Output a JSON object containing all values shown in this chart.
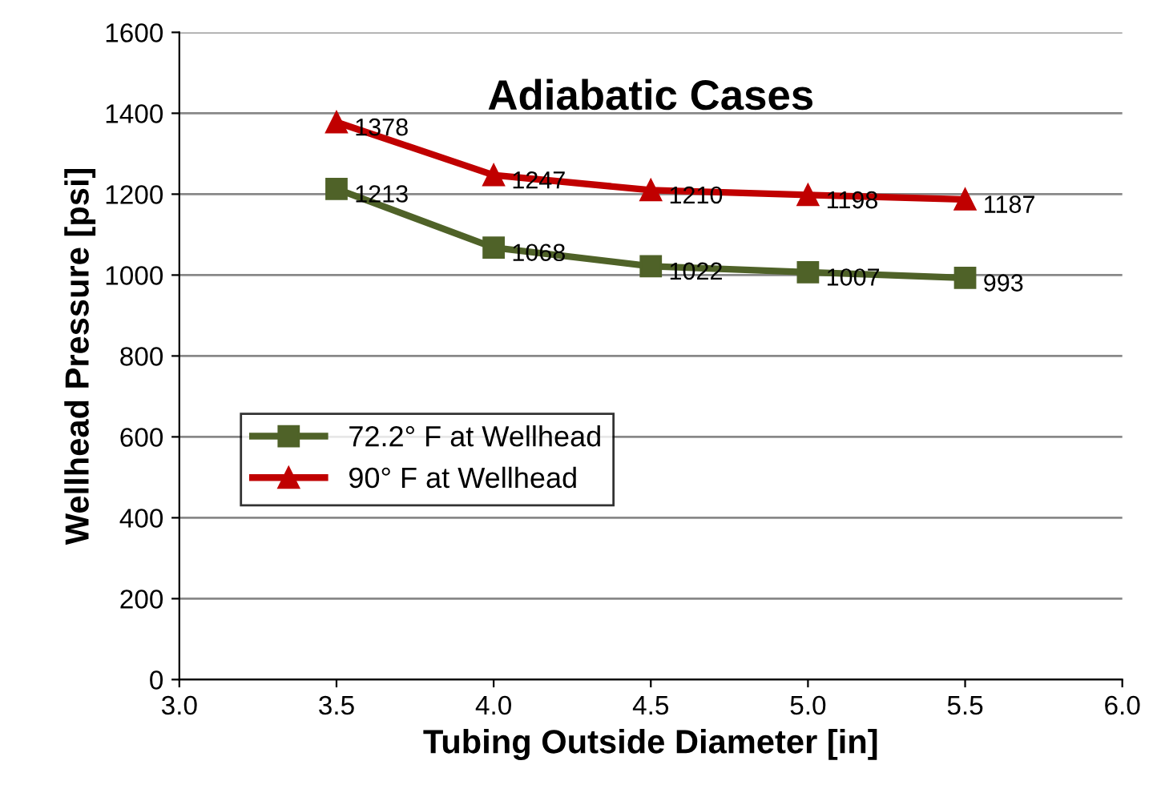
{
  "chart_data": {
    "type": "line",
    "title": "Adiabatic Cases",
    "xlabel": "Tubing Outside Diameter [in]",
    "ylabel": "Wellhead Pressure [psi]",
    "x": [
      3.5,
      4.0,
      4.5,
      5.0,
      5.5
    ],
    "series": [
      {
        "name": "72.2° F at Wellhead",
        "color": "#4f6228",
        "marker": "square",
        "values": [
          1213,
          1068,
          1022,
          1007,
          993
        ]
      },
      {
        "name": "90° F at Wellhead",
        "color": "#c00000",
        "marker": "triangle",
        "values": [
          1378,
          1247,
          1210,
          1198,
          1187
        ]
      }
    ],
    "xlim": [
      3.0,
      6.0
    ],
    "xticks": [
      {
        "value": 3.0,
        "label": "3.0"
      },
      {
        "value": 3.5,
        "label": "3.5"
      },
      {
        "value": 4.0,
        "label": "4.0"
      },
      {
        "value": 4.5,
        "label": "4.5"
      },
      {
        "value": 5.0,
        "label": "5.0"
      },
      {
        "value": 5.5,
        "label": "5.5"
      },
      {
        "value": 6.0,
        "label": "6.0"
      }
    ],
    "ylim": [
      0,
      1600
    ],
    "yticks": [
      0,
      200,
      400,
      600,
      800,
      1000,
      1200,
      1400,
      1600
    ],
    "grid": "y",
    "legend": "center left",
    "data_labels": true,
    "line_style": "solid"
  }
}
